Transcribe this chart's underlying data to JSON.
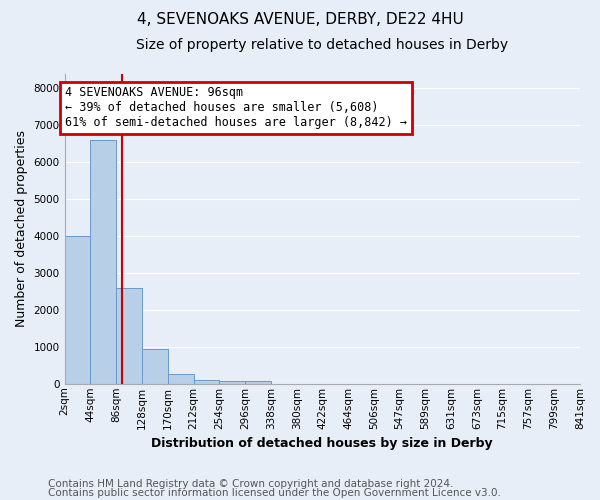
{
  "title": "4, SEVENOAKS AVENUE, DERBY, DE22 4HU",
  "subtitle": "Size of property relative to detached houses in Derby",
  "xlabel": "Distribution of detached houses by size in Derby",
  "ylabel": "Number of detached properties",
  "annotation_line1": "4 SEVENOAKS AVENUE: 96sqm",
  "annotation_line2": "← 39% of detached houses are smaller (5,608)",
  "annotation_line3": "61% of semi-detached houses are larger (8,842) →",
  "footnote1": "Contains HM Land Registry data © Crown copyright and database right 2024.",
  "footnote2": "Contains public sector information licensed under the Open Government Licence v3.0.",
  "bar_edges": [
    2,
    44,
    86,
    128,
    170,
    212,
    254,
    296,
    338,
    380,
    422,
    464,
    506,
    547,
    589,
    631,
    673,
    715,
    757,
    799,
    841
  ],
  "bar_heights": [
    4000,
    6600,
    2600,
    950,
    270,
    100,
    70,
    70,
    0,
    0,
    0,
    0,
    0,
    0,
    0,
    0,
    0,
    0,
    0,
    0
  ],
  "tick_labels": [
    "2sqm",
    "44sqm",
    "86sqm",
    "128sqm",
    "170sqm",
    "212sqm",
    "254sqm",
    "296sqm",
    "338sqm",
    "380sqm",
    "422sqm",
    "464sqm",
    "506sqm",
    "547sqm",
    "589sqm",
    "631sqm",
    "673sqm",
    "715sqm",
    "757sqm",
    "799sqm",
    "841sqm"
  ],
  "bar_color": "#b8cfe8",
  "bar_edge_color": "#6699cc",
  "red_line_x": 96,
  "ylim": [
    0,
    8400
  ],
  "yticks": [
    0,
    1000,
    2000,
    3000,
    4000,
    5000,
    6000,
    7000,
    8000
  ],
  "background_color": "#e8eef8",
  "plot_bg_color": "#e8eef8",
  "annotation_box_color": "white",
  "annotation_box_edge": "#cc0000",
  "grid_color": "#ffffff",
  "title_fontsize": 11,
  "subtitle_fontsize": 10,
  "label_fontsize": 9,
  "tick_fontsize": 7.5,
  "footnote_fontsize": 7.5,
  "annotation_fontsize": 8.5
}
